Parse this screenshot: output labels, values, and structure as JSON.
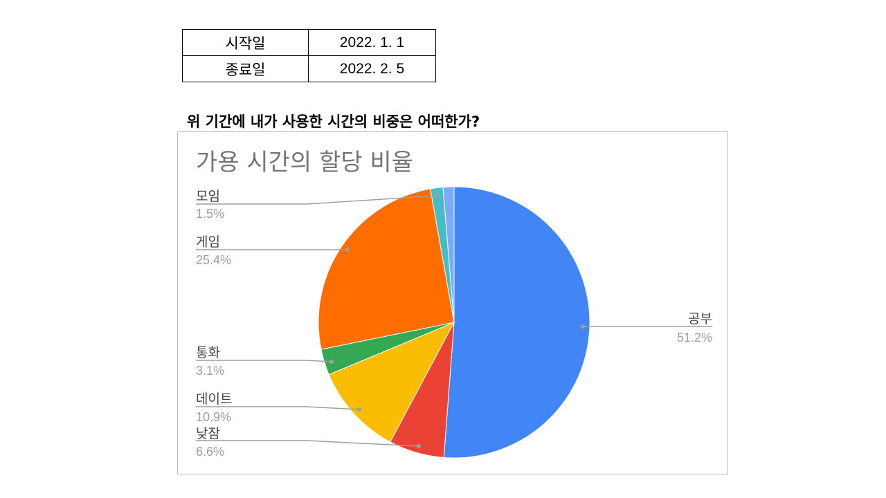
{
  "period_table": {
    "rows": [
      {
        "label": "시작일",
        "value": "2022. 1. 1"
      },
      {
        "label": "종료일",
        "value": "2022. 2. 5"
      }
    ]
  },
  "question": "위 기간에 내가 사용한 시간의 비중은 어떠한가?",
  "chart_data": {
    "type": "pie",
    "title": "가용 시간의 할당 비율",
    "slices": [
      {
        "label": "공부",
        "value": 51.2,
        "display": "51.2%",
        "color": "#4285f4"
      },
      {
        "label": "낮잠",
        "value": 6.6,
        "display": "6.6%",
        "color": "#ea4335"
      },
      {
        "label": "데이트",
        "value": 10.9,
        "display": "10.9%",
        "color": "#fbbc04"
      },
      {
        "label": "통화",
        "value": 3.1,
        "display": "3.1%",
        "color": "#34a853"
      },
      {
        "label": "게임",
        "value": 25.4,
        "display": "25.4%",
        "color": "#ff6d01"
      },
      {
        "label": "모임",
        "value": 1.5,
        "display": "1.5%",
        "color": "#46bdc6"
      },
      {
        "label": "",
        "value": 1.3,
        "display": "",
        "color": "#7baaf7"
      }
    ],
    "start_angle": "12 o'clock",
    "direction": "clockwise",
    "legend": "callout labels"
  }
}
